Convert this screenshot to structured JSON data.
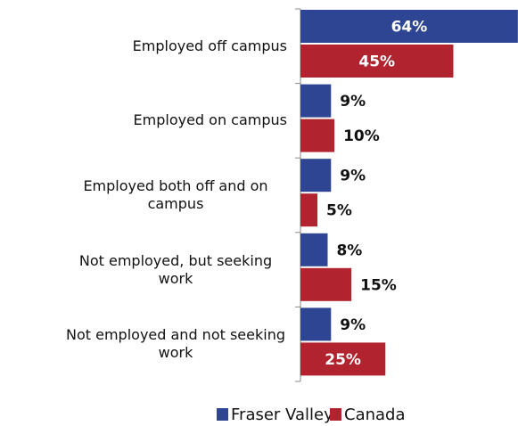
{
  "chart_data": {
    "type": "bar",
    "orientation": "horizontal",
    "categories": [
      "Employed off campus",
      "Employed on campus",
      "Employed both off and on campus",
      "Not employed, but seeking work",
      "Not employed and not seeking work"
    ],
    "series": [
      {
        "name": "Fraser Valley",
        "color": "#2e4593",
        "values": [
          64,
          9,
          9,
          8,
          9
        ],
        "value_labels": [
          "64%",
          "9%",
          "9%",
          "8%",
          "9%"
        ]
      },
      {
        "name": "Canada",
        "color": "#b0232f",
        "values": [
          45,
          10,
          5,
          15,
          25
        ],
        "value_labels": [
          "45%",
          "10%",
          "5%",
          "15%",
          "25%"
        ]
      }
    ],
    "legend": "bottom"
  }
}
